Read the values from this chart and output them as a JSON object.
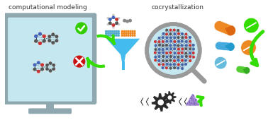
{
  "title_left": "computational modeling",
  "title_right": "cocrystallization",
  "bg_color": "#ffffff",
  "monitor_bg": "#c5e8f0",
  "monitor_frame": "#8fa8b0",
  "green_arrow_color": "#33dd00",
  "funnel_color": "#44bbee",
  "gear_color": "#2a2a2a",
  "pill_orange": "#ee8822",
  "pill_green": "#33dd00",
  "pill_blue": "#44aadd",
  "dot_blue": "#55aacc",
  "dot_orange": "#ee8822",
  "check_color": "#33cc00",
  "cross_color": "#cc1111",
  "magnify_bg": "#c5e8f0",
  "magnify_border": "#999999",
  "triangle_color": "#8866bb",
  "crystal_blue": "#4466aa",
  "crystal_red": "#cc3333",
  "bond_color": "#555577"
}
